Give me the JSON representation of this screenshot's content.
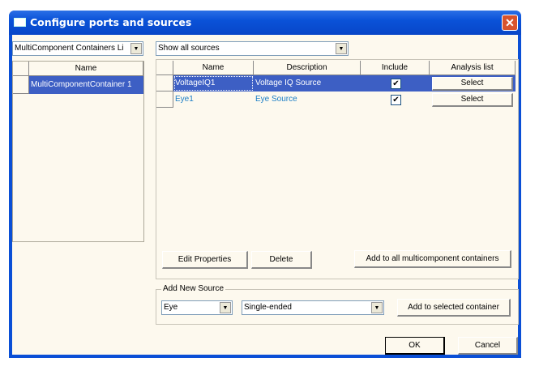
{
  "window": {
    "title": "Configure ports and sources",
    "close_icon": "close-icon"
  },
  "left": {
    "combo_value": "MultiComponent Containers Li",
    "column": "Name",
    "rows": [
      "MultiComponentContainer 1"
    ]
  },
  "right": {
    "filter_value": "Show all sources",
    "columns": [
      "Name",
      "Description",
      "Include",
      "Analysis list"
    ],
    "rows": [
      {
        "name": "VoltageIQ1",
        "description": "Voltage IQ Source",
        "include": true,
        "analysis": "Select",
        "selected": true
      },
      {
        "name": "Eye1",
        "description": "Eye  Source",
        "include": true,
        "analysis": "Select",
        "selected": false
      }
    ],
    "edit_properties": "Edit Properties",
    "delete": "Delete",
    "add_all": "Add to all multicomponent containers"
  },
  "add_new": {
    "legend": "Add New Source",
    "type_value": "Eye",
    "mode_value": "Single-ended",
    "add_selected": "Add to selected container"
  },
  "footer": {
    "ok": "OK",
    "cancel": "Cancel"
  },
  "colors": {
    "selection": "#3d5fc4",
    "link_text": "#1a7ec6",
    "title_bar": "#0a52d8"
  }
}
